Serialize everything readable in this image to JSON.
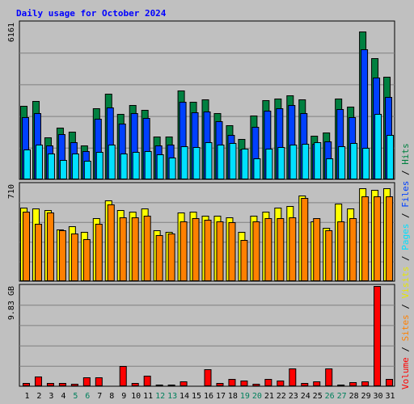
{
  "chart_data": {
    "type": "bar",
    "title": "Daily usage for October 2024",
    "categories": [
      "1",
      "2",
      "3",
      "4",
      "5",
      "6",
      "7",
      "8",
      "9",
      "10",
      "11",
      "12",
      "13",
      "14",
      "15",
      "16",
      "17",
      "18",
      "19",
      "20",
      "21",
      "22",
      "23",
      "24",
      "25",
      "26",
      "27",
      "28",
      "29",
      "30",
      "31"
    ],
    "weekend_days": [
      "5",
      "6",
      "12",
      "13",
      "19",
      "20",
      "26",
      "27"
    ],
    "panels": [
      {
        "max_label": "6161",
        "ylim": [
          0,
          6161
        ],
        "series": [
          {
            "name": "Hits",
            "color": "#008040",
            "values": [
              2880,
              3080,
              1640,
              2040,
              1880,
              1340,
              2780,
              3360,
              2560,
              2920,
              2720,
              1680,
              1690,
              3480,
              3050,
              3140,
              2620,
              2140,
              1590,
              2520,
              3100,
              3180,
              3300,
              3130,
              1710,
              1840,
              3160,
              2870,
              5810,
              4770,
              4030
            ]
          },
          {
            "name": "Files",
            "color": "#0040ff",
            "values": [
              2430,
              2610,
              1340,
              1770,
              1460,
              1100,
              2390,
              2840,
              2200,
              2600,
              2400,
              1330,
              1350,
              3060,
              2640,
              2680,
              2300,
              1760,
              1190,
              2060,
              2690,
              2800,
              2920,
              2620,
              1410,
              1480,
              2750,
              2460,
              5110,
              4000,
              3240
            ]
          },
          {
            "name": "Pages",
            "color": "#00e0ff",
            "values": [
              1160,
              1370,
              1030,
              770,
              1030,
              740,
              1080,
              1380,
              1030,
              1070,
              1120,
              980,
              860,
              1300,
              1260,
              1460,
              1360,
              1420,
              1200,
              840,
              1200,
              1260,
              1380,
              1400,
              1460,
              840,
              1300,
              1440,
              1240,
              2560,
              1750
            ]
          }
        ]
      },
      {
        "max_label": "710",
        "ylim": [
          0,
          710
        ],
        "series": [
          {
            "name": "Visits",
            "color": "#ffff00",
            "values": [
              540,
              530,
              520,
              380,
              400,
              360,
              460,
              590,
              520,
              510,
              530,
              370,
              360,
              500,
              510,
              480,
              480,
              470,
              360,
              480,
              510,
              540,
              550,
              630,
              440,
              390,
              570,
              530,
              680,
              670,
              680
            ]
          },
          {
            "name": "Sites",
            "color": "#ff8000",
            "values": [
              510,
              420,
              500,
              370,
              350,
              310,
              420,
              560,
              470,
              470,
              480,
              340,
              350,
              440,
              460,
              450,
              440,
              430,
              300,
              440,
              460,
              460,
              470,
              610,
              460,
              370,
              440,
              460,
              620,
              620,
              620
            ]
          }
        ]
      },
      {
        "max_label": "9.83 GB",
        "ylim": [
          0,
          9.83
        ],
        "series": [
          {
            "name": "Volume",
            "color": "#ff0000",
            "values": [
              0.34,
              0.98,
              0.29,
              0.29,
              0.24,
              0.84,
              0.84,
              0.04,
              2.01,
              0.34,
              1.05,
              0.14,
              0.19,
              0.44,
              0.04,
              1.69,
              0.34,
              0.73,
              0.54,
              0.24,
              0.73,
              0.59,
              1.74,
              0.34,
              0.48,
              1.73,
              0.19,
              0.39,
              0.49,
              9.83,
              0.69
            ]
          }
        ]
      }
    ],
    "legend": [
      "Volume",
      "Sites",
      "Visits",
      "Pages",
      "Files",
      "Hits"
    ],
    "legend_separator": " / ",
    "legend_placement": "right (rotated)",
    "grid": true
  },
  "colors": {
    "background": "#c0c0c0",
    "gridline": "#808080",
    "title": "#0000ff",
    "weekend_label": "#00805c",
    "weekday_label": "#000000"
  }
}
